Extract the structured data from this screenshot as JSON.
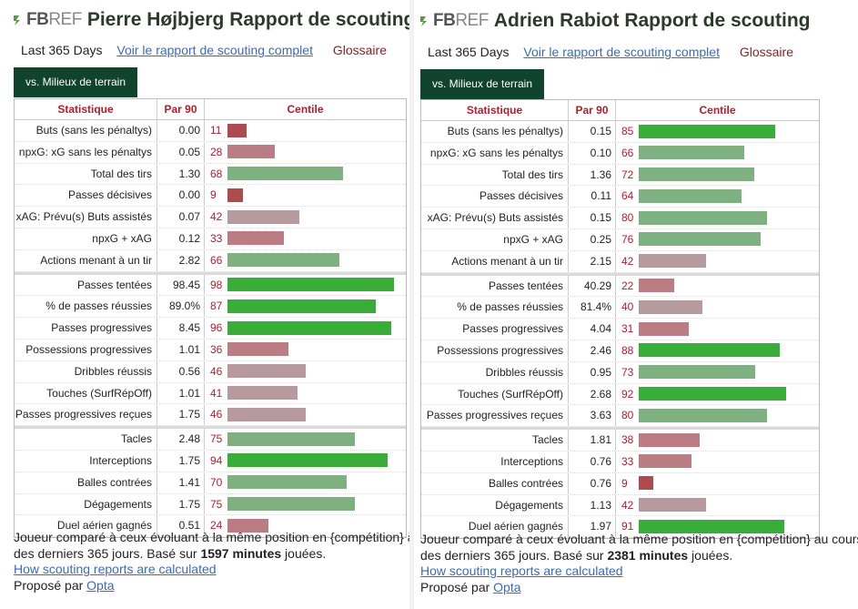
{
  "brand": {
    "fb": "FB",
    "ref": "REF"
  },
  "colors": {
    "very_low": "#ad4b4f",
    "low": "#ba7d83",
    "below_avg": "#b69a9d",
    "above_avg": "#7fb07f",
    "high": "#5bb85b",
    "very_high": "#3aac3a",
    "tab_bg": "#10442c",
    "header_text": "#b0202c"
  },
  "headers": {
    "stat": "Statistique",
    "per90": "Par 90",
    "pct": "Centile"
  },
  "panels": [
    {
      "title": "Pierre Højbjerg Rapport de scouting",
      "period": "Last 365 Days",
      "full_report_link": "Voir le rapport de scouting complet",
      "glossary_link": "Glossaire",
      "comparison_tab": "vs. Milieux de terrain",
      "groups": [
        [
          {
            "stat": "Buts (sans les pénaltys)",
            "per90": "0.00",
            "pct": 11
          },
          {
            "stat": "npxG: xG sans les pénaltys",
            "per90": "0.05",
            "pct": 28
          },
          {
            "stat": "Total des tirs",
            "per90": "1.30",
            "pct": 68
          },
          {
            "stat": "Passes décisives",
            "per90": "0.00",
            "pct": 9
          },
          {
            "stat": "xAG: Prévu(s) Buts assistés",
            "per90": "0.07",
            "pct": 42
          },
          {
            "stat": "npxG + xAG",
            "per90": "0.12",
            "pct": 33
          },
          {
            "stat": "Actions menant à un tir",
            "per90": "2.82",
            "pct": 66
          }
        ],
        [
          {
            "stat": "Passes tentées",
            "per90": "98.45",
            "pct": 98
          },
          {
            "stat": "% de passes réussies",
            "per90": "89.0%",
            "pct": 87
          },
          {
            "stat": "Passes progressives",
            "per90": "8.45",
            "pct": 96
          },
          {
            "stat": "Possessions progressives",
            "per90": "1.01",
            "pct": 36
          },
          {
            "stat": "Dribbles réussis",
            "per90": "0.56",
            "pct": 46
          },
          {
            "stat": "Touches (SurfRépOff)",
            "per90": "1.01",
            "pct": 41
          },
          {
            "stat": "Passes progressives reçues",
            "per90": "1.75",
            "pct": 46
          }
        ],
        [
          {
            "stat": "Tacles",
            "per90": "2.48",
            "pct": 75
          },
          {
            "stat": "Interceptions",
            "per90": "1.75",
            "pct": 94
          },
          {
            "stat": "Balles contrées",
            "per90": "1.41",
            "pct": 70
          },
          {
            "stat": "Dégagements",
            "per90": "1.75",
            "pct": 75
          },
          {
            "stat": "Duel aérien gagnés",
            "per90": "0.51",
            "pct": 24
          }
        ]
      ],
      "footnote": {
        "line1": "Joueur comparé à ceux évoluant à la même position en {compétition} au cours",
        "line2_pre": "des derniers 365 jours. Basé sur ",
        "minutes": "1597 minutes",
        "line2_post": " jouées.",
        "how_link": "How scouting reports are calculated",
        "provided_by": "Proposé par ",
        "provider": "Opta"
      }
    },
    {
      "title": "Adrien Rabiot Rapport de scouting",
      "period": "Last 365 Days",
      "full_report_link": "Voir le rapport de scouting complet",
      "glossary_link": "Glossaire",
      "comparison_tab": "vs. Milieux de terrain",
      "groups": [
        [
          {
            "stat": "Buts (sans les pénaltys)",
            "per90": "0.15",
            "pct": 85
          },
          {
            "stat": "npxG: xG sans les pénaltys",
            "per90": "0.10",
            "pct": 66
          },
          {
            "stat": "Total des tirs",
            "per90": "1.36",
            "pct": 72
          },
          {
            "stat": "Passes décisives",
            "per90": "0.11",
            "pct": 64
          },
          {
            "stat": "xAG: Prévu(s) Buts assistés",
            "per90": "0.15",
            "pct": 80
          },
          {
            "stat": "npxG + xAG",
            "per90": "0.25",
            "pct": 76
          },
          {
            "stat": "Actions menant à un tir",
            "per90": "2.15",
            "pct": 42
          }
        ],
        [
          {
            "stat": "Passes tentées",
            "per90": "40.29",
            "pct": 22
          },
          {
            "stat": "% de passes réussies",
            "per90": "81.4%",
            "pct": 40
          },
          {
            "stat": "Passes progressives",
            "per90": "4.04",
            "pct": 31
          },
          {
            "stat": "Possessions progressives",
            "per90": "2.46",
            "pct": 88
          },
          {
            "stat": "Dribbles réussis",
            "per90": "0.95",
            "pct": 73
          },
          {
            "stat": "Touches (SurfRépOff)",
            "per90": "2.68",
            "pct": 92
          },
          {
            "stat": "Passes progressives reçues",
            "per90": "3.63",
            "pct": 80
          }
        ],
        [
          {
            "stat": "Tacles",
            "per90": "1.81",
            "pct": 38
          },
          {
            "stat": "Interceptions",
            "per90": "0.76",
            "pct": 33
          },
          {
            "stat": "Balles contrées",
            "per90": "0.76",
            "pct": 9
          },
          {
            "stat": "Dégagements",
            "per90": "1.13",
            "pct": 42
          },
          {
            "stat": "Duel aérien gagnés",
            "per90": "1.97",
            "pct": 91
          }
        ]
      ],
      "footnote": {
        "line1": "Joueur comparé à ceux évoluant à la même position en {compétition} au cours",
        "line2_pre": "des derniers 365 jours. Basé sur ",
        "minutes": "2381 minutes",
        "line2_post": " jouées.",
        "how_link": "How scouting reports are calculated",
        "provided_by": "Proposé par ",
        "provider": "Opta"
      }
    }
  ]
}
